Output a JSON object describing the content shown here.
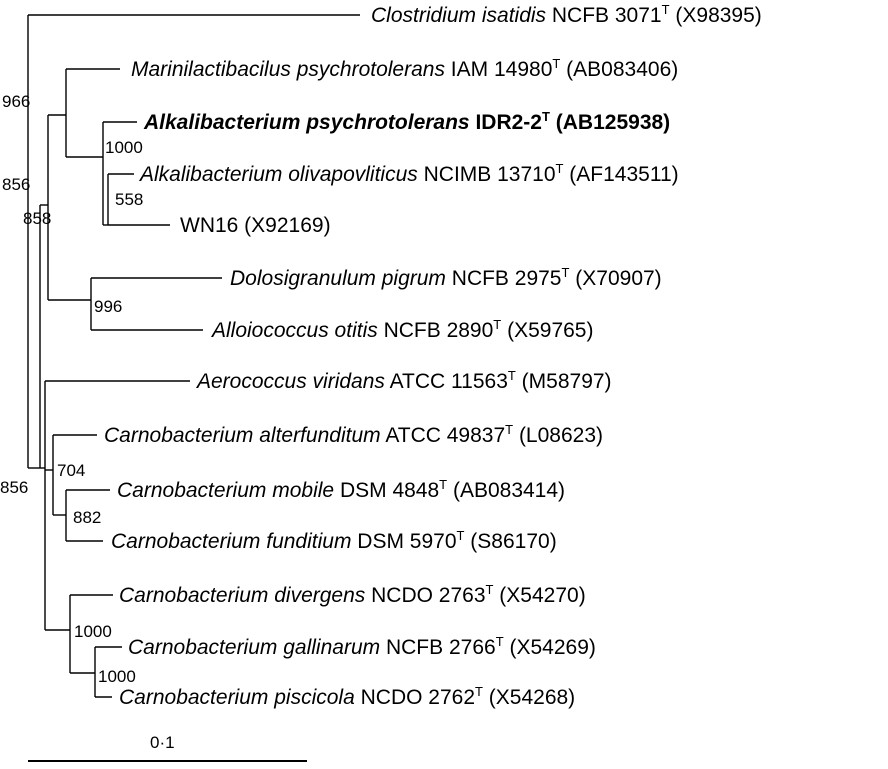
{
  "tree": {
    "leaves": [
      {
        "id": "L1",
        "italic": "Clostridium isatidis",
        "rest_pre": " NCFB 3071",
        "sup": "T",
        "rest_post": " (X98395)",
        "bold": false
      },
      {
        "id": "L2",
        "italic": "Marinilactibacilus psychrotolerans",
        "rest_pre": " IAM 14980",
        "sup": "T",
        "rest_post": " (AB083406)",
        "bold": false
      },
      {
        "id": "L3",
        "italic": "Alkalibacterium psychrotolerans",
        "rest_pre": " IDR2-2",
        "sup": "T",
        "rest_post": " (AB125938)",
        "bold": true
      },
      {
        "id": "L4",
        "italic": "Alkalibacterium olivapovliticus",
        "rest_pre": " NCIMB 13710",
        "sup": "T",
        "rest_post": " (AF143511)",
        "bold": false
      },
      {
        "id": "L5",
        "italic": "",
        "rest_pre": "WN16 (X92169)",
        "sup": "",
        "rest_post": "",
        "bold": false
      },
      {
        "id": "L6",
        "italic": "Dolosigranulum pigrum",
        "rest_pre": " NCFB 2975",
        "sup": "T",
        "rest_post": " (X70907)",
        "bold": false
      },
      {
        "id": "L7",
        "italic": "Alloiococcus otitis",
        "rest_pre": " NCFB 2890",
        "sup": "T",
        "rest_post": " (X59765)",
        "bold": false
      },
      {
        "id": "L8",
        "italic": "Aerococcus viridans",
        "rest_pre": " ATCC 11563",
        "sup": "T",
        "rest_post": " (M58797)",
        "bold": false
      },
      {
        "id": "L9",
        "italic": "Carnobacterium alterfunditum",
        "rest_pre": " ATCC 49837",
        "sup": "T",
        "rest_post": " (L08623)",
        "bold": false
      },
      {
        "id": "L10",
        "italic": "Carnobacterium mobile",
        "rest_pre": " DSM 4848",
        "sup": "T",
        "rest_post": " (AB083414)",
        "bold": false
      },
      {
        "id": "L11",
        "italic": "Carnobacterium funditium",
        "rest_pre": " DSM 5970",
        "sup": "T",
        "rest_post": " (S86170)",
        "bold": false
      },
      {
        "id": "L12",
        "italic": "Carnobacterium divergens",
        "rest_pre": " NCDO 2763",
        "sup": "T",
        "rest_post": " (X54270)",
        "bold": false
      },
      {
        "id": "L13",
        "italic": "Carnobacterium gallinarum",
        "rest_pre": " NCFB 2766",
        "sup": "T",
        "rest_post": " (X54269)",
        "bold": false
      },
      {
        "id": "L14",
        "italic": "Carnobacterium piscicola",
        "rest_pre": " NCDO 2762",
        "sup": "T",
        "rest_post": " (X54268)",
        "bold": false
      }
    ],
    "bootstrap": [
      {
        "id": "B966",
        "value": "966"
      },
      {
        "id": "B1000a",
        "value": "1000"
      },
      {
        "id": "B856a",
        "value": "856"
      },
      {
        "id": "B558",
        "value": "558"
      },
      {
        "id": "B858",
        "value": "858"
      },
      {
        "id": "B996",
        "value": "996"
      },
      {
        "id": "B704",
        "value": "704"
      },
      {
        "id": "B856b",
        "value": "856"
      },
      {
        "id": "B882",
        "value": "882"
      },
      {
        "id": "B1000b",
        "value": "1000"
      },
      {
        "id": "B1000c",
        "value": "1000"
      }
    ],
    "scale": {
      "label": "0·1"
    }
  }
}
